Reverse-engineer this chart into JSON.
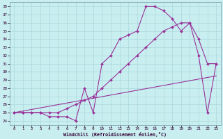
{
  "xlabel": "Windchill (Refroidissement éolien,°C)",
  "bg_color": "#c8eef0",
  "grid_color": "#aad8dc",
  "line_color": "#993399",
  "xlim": [
    -0.5,
    23.5
  ],
  "ylim": [
    23.5,
    38.5
  ],
  "xticks": [
    0,
    1,
    2,
    3,
    4,
    5,
    6,
    7,
    8,
    9,
    10,
    11,
    12,
    13,
    14,
    15,
    16,
    17,
    18,
    19,
    20,
    21,
    22,
    23
  ],
  "yticks": [
    24,
    25,
    26,
    27,
    28,
    29,
    30,
    31,
    32,
    33,
    34,
    35,
    36,
    37,
    38
  ],
  "line1_x": [
    0,
    1,
    2,
    3,
    4,
    5,
    6,
    7,
    8,
    9,
    10,
    11,
    12,
    13,
    14,
    15,
    16,
    17,
    18,
    19,
    20,
    21,
    22,
    23
  ],
  "line1_y": [
    25,
    25,
    25,
    25,
    24.5,
    24.5,
    24.5,
    24,
    28,
    25,
    31,
    32,
    34,
    34.5,
    35,
    38,
    38,
    37.5,
    36.5,
    35,
    36,
    32,
    25,
    31
  ],
  "line2_x": [
    0,
    1,
    2,
    3,
    4,
    5,
    6,
    7,
    8,
    9,
    10,
    11,
    12,
    13,
    14,
    15,
    16,
    17,
    18,
    19,
    20,
    21,
    22,
    23
  ],
  "line2_y": [
    25,
    25,
    25,
    25,
    25,
    25,
    25.5,
    26,
    26.5,
    27,
    28,
    29,
    30,
    31,
    32,
    33,
    34,
    35,
    35.5,
    36,
    36,
    34,
    31,
    31
  ],
  "line3_x": [
    0,
    23
  ],
  "line3_y": [
    25,
    29.5
  ]
}
